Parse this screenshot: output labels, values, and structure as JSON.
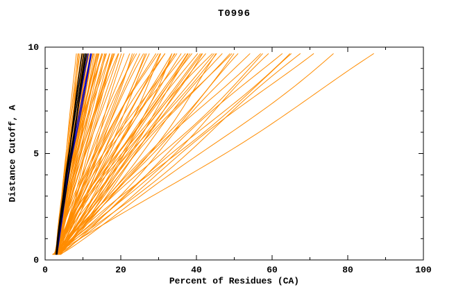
{
  "chart_data": {
    "type": "line",
    "title": "T0996",
    "xlabel": "Percent of Residues (CA)",
    "ylabel": "Distance Cutoff, A",
    "xlim": [
      0,
      100
    ],
    "ylim": [
      0,
      10
    ],
    "x_major_ticks": [
      0,
      20,
      40,
      60,
      80,
      100
    ],
    "x_minor_step": 10,
    "y_major_ticks": [
      0,
      5,
      10
    ],
    "y_minor_step": 1,
    "grid": false,
    "legend": "none",
    "background": "#ffffff",
    "frame_color": "#000000",
    "colors": {
      "o": "#ff8c00",
      "b": "#0000c8",
      "k": "#000000"
    },
    "curve_start": {
      "x": 3,
      "y": 0.25
    },
    "curve_top_y": 9.7,
    "curves_note": "each curve = [color, x-percent reached at top cutoff, shape exponent]; orange = predicted models, black = best models, blue = runner-up models",
    "curves": [
      [
        "o",
        8.2,
        1.0
      ],
      [
        "o",
        8.6,
        1.1
      ],
      [
        "o",
        9.0,
        0.95
      ],
      [
        "o",
        9.3,
        1.2
      ],
      [
        "o",
        9.6,
        1.05
      ],
      [
        "o",
        10.0,
        1.15
      ],
      [
        "o",
        10.3,
        0.9
      ],
      [
        "o",
        10.6,
        1.25
      ],
      [
        "o",
        11.0,
        1.0
      ],
      [
        "o",
        11.3,
        1.1
      ],
      [
        "o",
        11.6,
        0.95
      ],
      [
        "o",
        12.0,
        1.2
      ],
      [
        "o",
        12.4,
        1.05
      ],
      [
        "o",
        12.8,
        1.15
      ],
      [
        "o",
        13.2,
        0.9
      ],
      [
        "o",
        13.6,
        1.1
      ],
      [
        "o",
        14.0,
        1.0
      ],
      [
        "o",
        14.5,
        1.2
      ],
      [
        "o",
        15.0,
        0.95
      ],
      [
        "o",
        15.5,
        1.1
      ],
      [
        "o",
        16.0,
        1.05
      ],
      [
        "o",
        16.5,
        1.25
      ],
      [
        "o",
        17.0,
        0.9
      ],
      [
        "o",
        17.5,
        1.1
      ],
      [
        "o",
        18.0,
        1.0
      ],
      [
        "o",
        18.6,
        1.15
      ],
      [
        "o",
        19.2,
        0.95
      ],
      [
        "o",
        20.0,
        1.1
      ],
      [
        "o",
        10.8,
        1.3
      ],
      [
        "o",
        11.8,
        1.35
      ],
      [
        "o",
        12.6,
        1.28
      ],
      [
        "o",
        13.9,
        1.32
      ],
      [
        "o",
        9.8,
        1.28
      ],
      [
        "o",
        15.2,
        1.3
      ],
      [
        "o",
        16.8,
        1.35
      ],
      [
        "o",
        18.3,
        1.28
      ],
      [
        "o",
        19.6,
        1.32
      ],
      [
        "o",
        14.8,
        1.26
      ],
      [
        "o",
        13.4,
        1.22
      ],
      [
        "o",
        12.2,
        1.18
      ],
      [
        "o",
        21,
        0.9
      ],
      [
        "o",
        22,
        1.05
      ],
      [
        "o",
        23,
        0.95
      ],
      [
        "o",
        24,
        1.15
      ],
      [
        "o",
        25,
        1.0
      ],
      [
        "o",
        26,
        0.85
      ],
      [
        "o",
        27,
        1.1
      ],
      [
        "o",
        28,
        0.95
      ],
      [
        "o",
        29,
        1.2
      ],
      [
        "o",
        30,
        1.0
      ],
      [
        "o",
        31,
        0.9
      ],
      [
        "o",
        32,
        1.1
      ],
      [
        "o",
        33,
        0.95
      ],
      [
        "o",
        34,
        1.05
      ],
      [
        "o",
        35,
        1.15
      ],
      [
        "o",
        36,
        0.9
      ],
      [
        "o",
        37,
        1.0
      ],
      [
        "o",
        38,
        1.1
      ],
      [
        "o",
        39,
        0.95
      ],
      [
        "o",
        40,
        1.05
      ],
      [
        "o",
        41,
        0.9
      ],
      [
        "o",
        42,
        1.15
      ],
      [
        "o",
        43,
        1.0
      ],
      [
        "o",
        44,
        0.95
      ],
      [
        "o",
        45,
        1.1
      ],
      [
        "o",
        46,
        0.85
      ],
      [
        "o",
        47,
        1.0
      ],
      [
        "o",
        48,
        1.05
      ],
      [
        "o",
        50,
        0.95
      ],
      [
        "o",
        26.5,
        1.25
      ],
      [
        "o",
        31.5,
        1.22
      ],
      [
        "o",
        36.5,
        1.28
      ],
      [
        "o",
        41.5,
        1.18
      ],
      [
        "o",
        24.5,
        1.3
      ],
      [
        "o",
        29.5,
        1.26
      ],
      [
        "o",
        34.5,
        1.3
      ],
      [
        "o",
        39.5,
        1.24
      ],
      [
        "o",
        44.5,
        1.2
      ],
      [
        "o",
        48.5,
        1.12
      ],
      [
        "o",
        33.5,
        0.8
      ],
      [
        "o",
        52,
        1.0
      ],
      [
        "o",
        54,
        0.95
      ],
      [
        "o",
        56,
        1.05
      ],
      [
        "o",
        58,
        1.0
      ],
      [
        "o",
        60,
        0.92
      ],
      [
        "o",
        62,
        1.0
      ],
      [
        "o",
        64,
        0.97
      ],
      [
        "o",
        66,
        1.02
      ],
      [
        "o",
        68,
        0.95
      ],
      [
        "o",
        70,
        1.0
      ],
      [
        "o",
        76,
        0.93
      ],
      [
        "o",
        88,
        0.97
      ],
      [
        "b",
        11.4,
        1.12
      ],
      [
        "b",
        11.9,
        1.08
      ],
      [
        "b",
        12.3,
        1.15
      ],
      [
        "k",
        9.9,
        1.12
      ],
      [
        "k",
        10.2,
        1.08
      ],
      [
        "k",
        10.5,
        1.15
      ],
      [
        "k",
        10.8,
        1.1
      ],
      [
        "k",
        11.1,
        1.05
      ]
    ]
  }
}
